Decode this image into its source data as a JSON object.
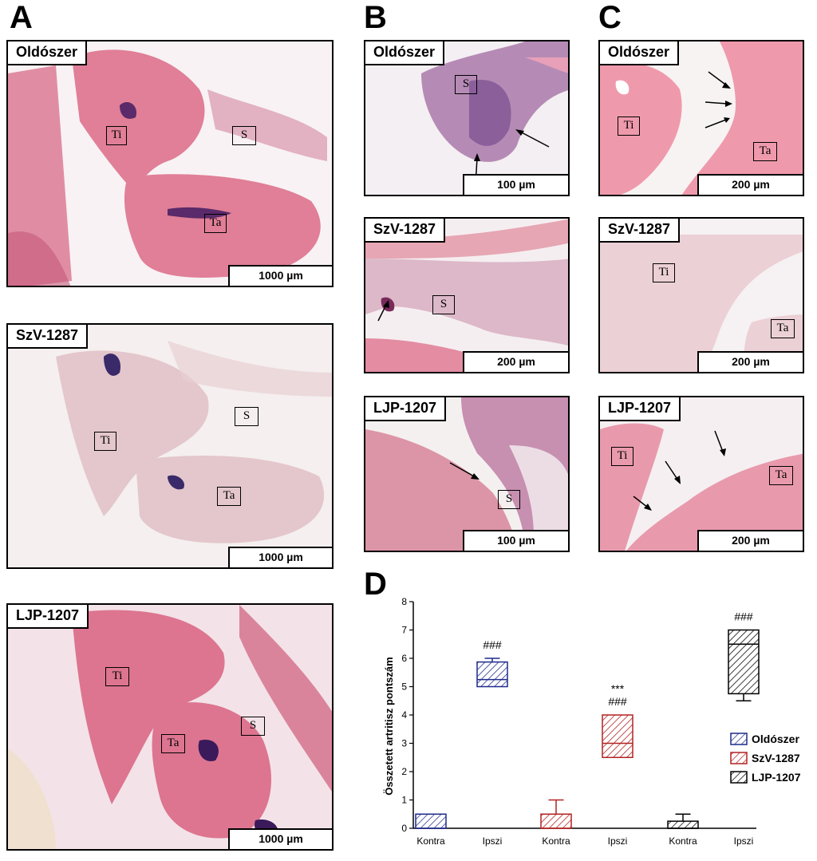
{
  "panels": {
    "A": "A",
    "B": "B",
    "C": "C",
    "D": "D"
  },
  "images": {
    "A1": {
      "title": "Oldószer",
      "scale": "1000 µm",
      "labels": [
        "Ti",
        "S",
        "Ta"
      ]
    },
    "A2": {
      "title": "SzV-1287",
      "scale": "1000 µm",
      "labels": [
        "Ti",
        "S",
        "Ta"
      ]
    },
    "A3": {
      "title": "LJP-1207",
      "scale": "1000 µm",
      "labels": [
        "Ti",
        "S",
        "Ta"
      ]
    },
    "B1": {
      "title": "Oldószer",
      "scale": "100 µm",
      "labels": [
        "S"
      ]
    },
    "B2": {
      "title": "SzV-1287",
      "scale": "200 µm",
      "labels": [
        "S"
      ]
    },
    "B3": {
      "title": "LJP-1207",
      "scale": "100 µm",
      "labels": [
        "S"
      ]
    },
    "C1": {
      "title": "Oldószer",
      "scale": "200 µm",
      "labels": [
        "Ti",
        "Ta"
      ]
    },
    "C2": {
      "title": "SzV-1287",
      "scale": "200 µm",
      "labels": [
        "Ti",
        "Ta"
      ]
    },
    "C3": {
      "title": "LJP-1207",
      "scale": "200 µm",
      "labels": [
        "Ti",
        "Ta"
      ]
    }
  },
  "chart_data": {
    "type": "box",
    "ylabel": "Összetett artritisz pontszám",
    "ylim": [
      0,
      8
    ],
    "yticks": [
      0,
      1,
      2,
      3,
      4,
      5,
      6,
      7,
      8
    ],
    "categories": [
      "Kontra",
      "Ipszi",
      "Kontra",
      "Ipszi",
      "Kontra",
      "Ipszi"
    ],
    "legend": {
      "placement": "right",
      "entries": [
        "Oldószer",
        "SzV-1287",
        "LJP-1207"
      ]
    },
    "series": [
      {
        "name": "Oldószer",
        "color": "#1f2a8c",
        "boxes": [
          {
            "category": "Kontra",
            "min": 0,
            "q1": 0,
            "median": 0,
            "q3": 0.5,
            "max": 0.5,
            "annotations": []
          },
          {
            "category": "Ipszi",
            "min": 5,
            "q1": 5,
            "median": 5.25,
            "q3": 5.87,
            "max": 6,
            "annotations": [
              "###"
            ]
          }
        ]
      },
      {
        "name": "SzV-1287",
        "color": "#b22222",
        "boxes": [
          {
            "category": "Kontra",
            "min": 0,
            "q1": 0,
            "median": 0,
            "q3": 0.5,
            "max": 1,
            "annotations": []
          },
          {
            "category": "Ipszi",
            "min": 2.5,
            "q1": 2.5,
            "median": 3,
            "q3": 4,
            "max": 4,
            "annotations": [
              "***",
              "###"
            ]
          }
        ]
      },
      {
        "name": "LJP-1207",
        "color": "#000000",
        "boxes": [
          {
            "category": "Kontra",
            "min": 0,
            "q1": 0,
            "median": 0,
            "q3": 0.25,
            "max": 0.5,
            "annotations": []
          },
          {
            "category": "Ipszi",
            "min": 4.5,
            "q1": 4.75,
            "median": 6.5,
            "q3": 7,
            "max": 7,
            "annotations": [
              "###"
            ]
          }
        ]
      }
    ]
  }
}
